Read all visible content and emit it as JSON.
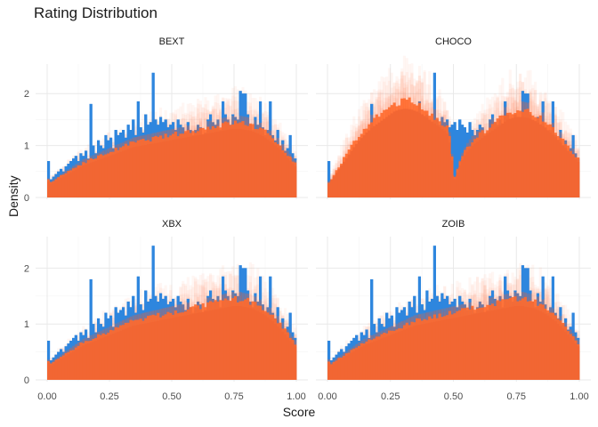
{
  "chart_data": {
    "type": "bar",
    "title": "Rating Distribution",
    "xlabel": "Score",
    "ylabel": "Density",
    "xlim": [
      0,
      1
    ],
    "ylim": [
      0,
      2.5
    ],
    "x_ticks": [
      "0.00",
      "0.25",
      "0.50",
      "0.75",
      "1.00"
    ],
    "y_ticks": [
      "0",
      "1",
      "2"
    ],
    "grid": true,
    "observed_color": "#2e86de",
    "replicate_color": "#ff6a2e",
    "observed_bins": {
      "x_start": 0,
      "x_end": 1,
      "density": [
        0.7,
        0.35,
        0.4,
        0.45,
        0.5,
        0.55,
        0.5,
        0.6,
        0.65,
        0.7,
        0.75,
        0.8,
        0.7,
        0.85,
        0.8,
        0.9,
        0.75,
        1.8,
        1.0,
        0.85,
        1.1,
        1.0,
        0.95,
        1.2,
        1.1,
        1.15,
        0.95,
        1.3,
        1.2,
        1.25,
        1.3,
        1.15,
        1.4,
        1.3,
        1.5,
        1.2,
        1.85,
        1.35,
        1.25,
        1.6,
        1.4,
        1.45,
        2.4,
        1.5,
        1.4,
        1.55,
        1.45,
        1.5,
        1.35,
        1.4,
        1.45,
        1.3,
        1.5,
        1.4,
        1.35,
        1.25,
        1.45,
        1.3,
        1.2,
        1.3,
        1.4,
        1.35,
        1.2,
        1.25,
        1.5,
        1.6,
        1.45,
        1.4,
        1.5,
        1.3,
        1.85,
        1.6,
        1.5,
        1.4,
        1.6,
        1.55,
        1.5,
        2.05,
        2.0,
        2.0,
        1.6,
        1.4,
        1.3,
        1.55,
        1.4,
        1.85,
        1.35,
        1.2,
        1.3,
        1.85,
        1.2,
        1.1,
        1.3,
        1.0,
        1.1,
        0.9,
        0.95,
        1.2,
        0.85,
        0.75
      ]
    },
    "panels": [
      {
        "title": "BEXT",
        "replicate_mean": [
          0.35,
          0.3,
          0.33,
          0.37,
          0.4,
          0.43,
          0.46,
          0.49,
          0.52,
          0.55,
          0.58,
          0.61,
          0.64,
          0.67,
          0.7,
          0.72,
          0.74,
          0.76,
          0.78,
          0.8,
          0.82,
          0.84,
          0.86,
          0.88,
          0.9,
          0.92,
          0.94,
          0.96,
          0.98,
          1.0,
          1.02,
          1.04,
          1.06,
          1.08,
          1.1,
          1.11,
          1.12,
          1.13,
          1.14,
          1.15,
          1.16,
          1.17,
          1.18,
          1.19,
          1.2,
          1.21,
          1.22,
          1.23,
          1.24,
          1.25,
          1.26,
          1.27,
          1.28,
          1.29,
          1.3,
          1.31,
          1.32,
          1.33,
          1.34,
          1.35,
          1.36,
          1.37,
          1.38,
          1.39,
          1.4,
          1.41,
          1.42,
          1.43,
          1.44,
          1.45,
          1.46,
          1.47,
          1.48,
          1.49,
          1.5,
          1.5,
          1.5,
          1.5,
          1.49,
          1.48,
          1.47,
          1.46,
          1.44,
          1.42,
          1.4,
          1.37,
          1.34,
          1.31,
          1.27,
          1.23,
          1.19,
          1.14,
          1.09,
          1.04,
          0.98,
          0.92,
          0.86,
          0.8,
          0.74,
          0.68
        ]
      },
      {
        "title": "CHOCO",
        "replicate_mean": [
          0.3,
          0.38,
          0.46,
          0.54,
          0.62,
          0.7,
          0.78,
          0.86,
          0.94,
          1.02,
          1.1,
          1.17,
          1.24,
          1.3,
          1.36,
          1.42,
          1.47,
          1.52,
          1.56,
          1.6,
          1.64,
          1.68,
          1.72,
          1.76,
          1.8,
          1.84,
          1.88,
          1.9,
          1.92,
          1.93,
          1.94,
          1.94,
          1.93,
          1.92,
          1.9,
          1.88,
          1.85,
          1.82,
          1.78,
          1.74,
          1.7,
          1.66,
          1.62,
          1.58,
          1.54,
          1.5,
          1.46,
          1.4,
          1.2,
          0.8,
          0.4,
          0.55,
          0.7,
          0.82,
          0.92,
          1.0,
          1.07,
          1.13,
          1.18,
          1.22,
          1.26,
          1.3,
          1.34,
          1.38,
          1.42,
          1.46,
          1.5,
          1.54,
          1.58,
          1.62,
          1.66,
          1.7,
          1.72,
          1.74,
          1.75,
          1.76,
          1.76,
          1.76,
          1.75,
          1.74,
          1.72,
          1.7,
          1.67,
          1.64,
          1.6,
          1.56,
          1.52,
          1.47,
          1.42,
          1.37,
          1.32,
          1.26,
          1.2,
          1.14,
          1.08,
          1.02,
          0.96,
          0.9,
          0.84,
          0.78
        ]
      },
      {
        "title": "XBX",
        "replicate_mean": [
          0.35,
          0.3,
          0.33,
          0.37,
          0.4,
          0.43,
          0.46,
          0.49,
          0.52,
          0.55,
          0.58,
          0.61,
          0.64,
          0.67,
          0.7,
          0.72,
          0.74,
          0.76,
          0.78,
          0.8,
          0.82,
          0.84,
          0.86,
          0.88,
          0.9,
          0.92,
          0.94,
          0.96,
          0.98,
          1.0,
          1.02,
          1.04,
          1.06,
          1.08,
          1.1,
          1.11,
          1.12,
          1.13,
          1.14,
          1.15,
          1.16,
          1.17,
          1.18,
          1.19,
          1.2,
          1.21,
          1.22,
          1.23,
          1.24,
          1.25,
          1.26,
          1.27,
          1.28,
          1.29,
          1.3,
          1.31,
          1.32,
          1.33,
          1.34,
          1.35,
          1.36,
          1.37,
          1.38,
          1.39,
          1.4,
          1.41,
          1.42,
          1.43,
          1.44,
          1.45,
          1.46,
          1.47,
          1.48,
          1.49,
          1.5,
          1.5,
          1.5,
          1.5,
          1.49,
          1.48,
          1.47,
          1.46,
          1.44,
          1.42,
          1.4,
          1.37,
          1.34,
          1.31,
          1.27,
          1.23,
          1.19,
          1.14,
          1.09,
          1.04,
          0.98,
          0.92,
          0.86,
          0.8,
          0.74,
          0.68
        ]
      },
      {
        "title": "ZOIB",
        "replicate_mean": [
          0.35,
          0.3,
          0.33,
          0.37,
          0.4,
          0.43,
          0.46,
          0.49,
          0.52,
          0.55,
          0.58,
          0.61,
          0.64,
          0.67,
          0.7,
          0.72,
          0.74,
          0.76,
          0.78,
          0.8,
          0.82,
          0.84,
          0.86,
          0.88,
          0.9,
          0.92,
          0.94,
          0.96,
          0.98,
          1.0,
          1.02,
          1.04,
          1.06,
          1.08,
          1.1,
          1.11,
          1.12,
          1.13,
          1.14,
          1.15,
          1.16,
          1.17,
          1.18,
          1.19,
          1.2,
          1.21,
          1.22,
          1.23,
          1.24,
          1.25,
          1.26,
          1.27,
          1.28,
          1.29,
          1.3,
          1.31,
          1.32,
          1.33,
          1.34,
          1.35,
          1.36,
          1.37,
          1.38,
          1.39,
          1.4,
          1.41,
          1.42,
          1.43,
          1.44,
          1.45,
          1.46,
          1.47,
          1.48,
          1.49,
          1.5,
          1.5,
          1.5,
          1.5,
          1.49,
          1.48,
          1.47,
          1.46,
          1.44,
          1.42,
          1.4,
          1.37,
          1.34,
          1.31,
          1.27,
          1.23,
          1.19,
          1.14,
          1.09,
          1.04,
          0.98,
          0.92,
          0.86,
          0.8,
          0.74,
          0.68
        ]
      }
    ]
  }
}
